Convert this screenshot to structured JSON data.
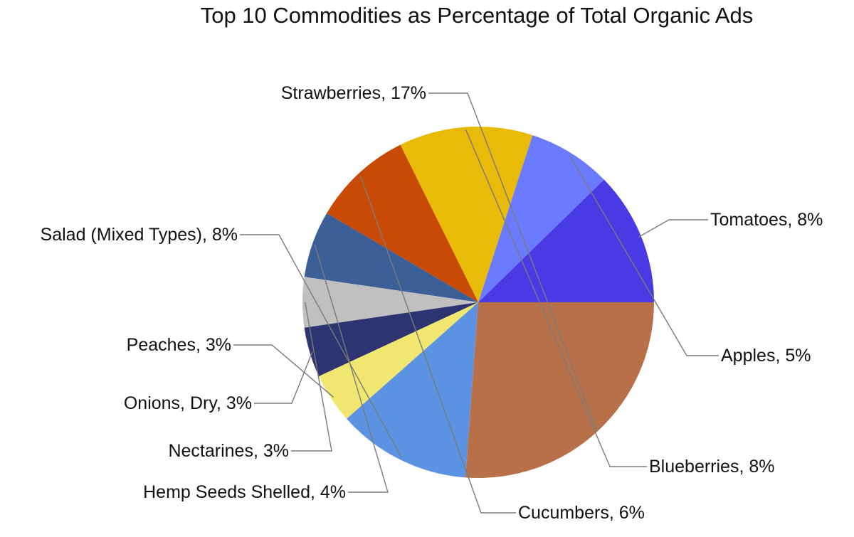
{
  "chart_data": {
    "type": "pie",
    "title": "Top 10 Commodities as Percentage of Total Organic Ads",
    "slices": [
      {
        "label": "Tomatoes",
        "value": 8,
        "display": "Tomatoes, 8%",
        "color": "#4a3ae6"
      },
      {
        "label": "Apples",
        "value": 5,
        "display": "Apples, 5%",
        "color": "#6b7bff"
      },
      {
        "label": "Blueberries",
        "value": 8,
        "display": "Blueberries, 8%",
        "color": "#e8bb08"
      },
      {
        "label": "Cucumbers",
        "value": 6,
        "display": "Cucumbers, 6%",
        "color": "#c94a04"
      },
      {
        "label": "Hemp Seeds Shelled",
        "value": 4,
        "display": "Hemp Seeds Shelled, 4%",
        "color": "#3c5f98"
      },
      {
        "label": "Nectarines",
        "value": 3,
        "display": "Nectarines, 3%",
        "color": "#c0c0c0"
      },
      {
        "label": "Onions, Dry",
        "value": 3,
        "display": "Onions, Dry, 3%",
        "color": "#2d3470"
      },
      {
        "label": "Peaches",
        "value": 3,
        "display": "Peaches, 3%",
        "color": "#f0e670"
      },
      {
        "label": "Salad (Mixed Types)",
        "value": 8,
        "display": "Salad (Mixed Types), 8%",
        "color": "#5c92e2"
      },
      {
        "label": "Strawberries",
        "value": 17,
        "display": "Strawberries, 17%",
        "color": "#b87048"
      }
    ],
    "start_angle": "3 o'clock",
    "direction": "counterclockwise",
    "legend": "none",
    "data_labels": "outside with leader lines"
  }
}
